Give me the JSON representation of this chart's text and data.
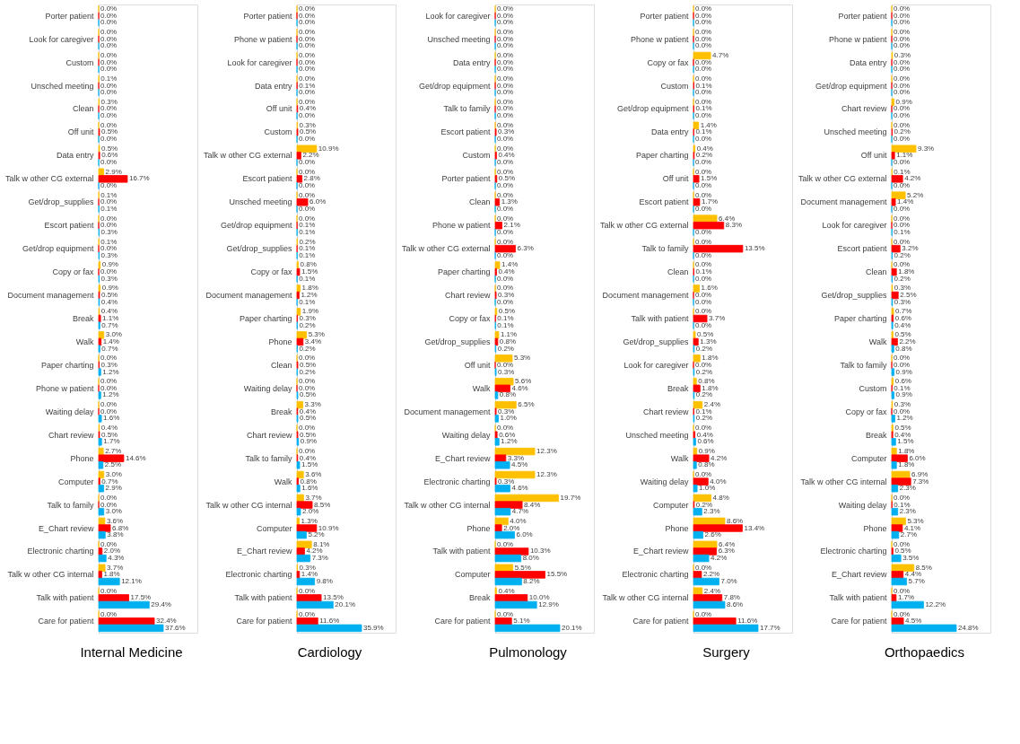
{
  "chart_data": [
    {
      "type": "bar",
      "orientation": "horizontal",
      "xlabel": "Internal Medicine",
      "tick_labels": "y",
      "categories": [
        "Porter patient",
        "Look for caregiver",
        "Custom",
        "Unsched meeting",
        "Clean",
        "Off unit",
        "Data entry",
        "Talk w other CG external",
        "Get/drop_supplies",
        "Escort patient",
        "Get/drop equipment",
        "Copy or fax",
        "Document management",
        "Break",
        "Walk",
        "Paper charting",
        "Phone w patient",
        "Waiting delay",
        "Chart review",
        "Phone",
        "Computer",
        "Talk to family",
        "E_Chart review",
        "Electronic charting",
        "Talk w other CG internal",
        "Talk with patient",
        "Care for patient"
      ],
      "series": [
        {
          "color": "#ffc000",
          "values": [
            0,
            0,
            0,
            0.1,
            0.3,
            0,
            0.5,
            2.9,
            0.1,
            0,
            0.1,
            0.9,
            0.9,
            0.4,
            3.0,
            0,
            0,
            0,
            0.4,
            2.7,
            3.0,
            0,
            3.6,
            0,
            3.7,
            0,
            0
          ],
          "value_labels": [
            "0.0%",
            "0.0%",
            "0.0%",
            "0.1%",
            "0.3%",
            "0.0%",
            "0.5%",
            "2.9%",
            "0.1%",
            "0.0%",
            "0.1%",
            "0.9%",
            "0.9%",
            "0.4%",
            "3.0%",
            "0.0%",
            "0.0%",
            "0.0%",
            "0.4%",
            "2.7%",
            "3.0%",
            "0.0%",
            "3.6%",
            "0.0%",
            "3.7%",
            "0.0%",
            "0.0%"
          ]
        },
        {
          "color": "#ff0000",
          "values": [
            0,
            0,
            0,
            0,
            0,
            0.5,
            0.6,
            16.7,
            0,
            0,
            0,
            0,
            0.5,
            1.1,
            1.4,
            0.3,
            0,
            0,
            0.5,
            14.6,
            0.7,
            0,
            6.8,
            2.0,
            1.8,
            17.5,
            32.4
          ],
          "value_labels": [
            "0.0%",
            "0.0%",
            "0.0%",
            "0.0%",
            "0.0%",
            "0.5%",
            "0.6%",
            "16.7%",
            "0.0%",
            "0.0%",
            "0.0%",
            "0.0%",
            "0.5%",
            "1.1%",
            "1.4%",
            "0.3%",
            "0.0%",
            "0.0%",
            "0.5%",
            "14.6%",
            "0.7%",
            "0.0%",
            "6.8%",
            "2.0%",
            "1.8%",
            "17.5%",
            "32.4%"
          ]
        },
        {
          "color": "#00b0f0",
          "values": [
            0,
            0,
            0,
            0,
            0,
            0,
            0,
            0,
            0.1,
            0.3,
            0.3,
            0.3,
            0.4,
            0.7,
            0.7,
            1.2,
            1.2,
            1.6,
            1.7,
            2.5,
            2.9,
            3.0,
            3.8,
            4.3,
            12.1,
            29.4,
            37.6
          ],
          "value_labels": [
            "0.0%",
            "0.0%",
            "0.0%",
            "0.0%",
            "0.0%",
            "0.0%",
            "0.0%",
            "0.0%",
            "0.1%",
            "0.3%",
            "0.3%",
            "0.3%",
            "0.4%",
            "0.7%",
            "0.7%",
            "1.2%",
            "1.2%",
            "1.6%",
            "1.7%",
            "2.5%",
            "2.9%",
            "3.0%",
            "3.8%",
            "4.3%",
            "12.1%",
            "29.4%",
            "37.6%"
          ]
        }
      ]
    },
    {
      "type": "bar",
      "orientation": "horizontal",
      "xlabel": "Cardiology",
      "tick_labels": "y",
      "categories": [
        "Porter patient",
        "Phone w patient",
        "Look for caregiver",
        "Data entry",
        "Off unit",
        "Custom",
        "Talk w other CG external",
        "Escort patient",
        "Unsched meeting",
        "Get/drop equipment",
        "Get/drop_supplies",
        "Copy or fax",
        "Document management",
        "Paper charting",
        "Phone",
        "Clean",
        "Waiting delay",
        "Break",
        "Chart review",
        "Talk to family",
        "Walk",
        "Talk w other CG internal",
        "Computer",
        "E_Chart review",
        "Electronic charting",
        "Talk with patient",
        "Care for patient"
      ],
      "series": [
        {
          "color": "#ffc000",
          "values": [
            0,
            0,
            0,
            0,
            0,
            0.3,
            10.9,
            0,
            0,
            0,
            0.2,
            0.8,
            1.8,
            1.9,
            5.3,
            0,
            0,
            3.3,
            0,
            0,
            3.6,
            3.7,
            1.3,
            8.1,
            0.3,
            0,
            0
          ],
          "value_labels": [
            "0.0%",
            "0.0%",
            "0.0%",
            "0.0%",
            "0.0%",
            "0.3%",
            "10.9%",
            "0.0%",
            "0.0%",
            "0.0%",
            "0.2%",
            "0.8%",
            "1.8%",
            "1.9%",
            "5.3%",
            "0.0%",
            "0.0%",
            "3.3%",
            "0.0%",
            "0.0%",
            "3.6%",
            "3.7%",
            "1.3%",
            "8.1%",
            "0.3%",
            "0.0%",
            "0.0%"
          ]
        },
        {
          "color": "#ff0000",
          "values": [
            0,
            0,
            0,
            0.1,
            0.4,
            0.5,
            2.2,
            2.8,
            6.0,
            0.1,
            0.1,
            1.5,
            1.2,
            0.3,
            3.4,
            0.5,
            0,
            0.4,
            0.5,
            0.4,
            0.8,
            8.5,
            10.9,
            4.2,
            1.4,
            13.5,
            11.6
          ],
          "value_labels": [
            "0.0%",
            "0.0%",
            "0.0%",
            "0.1%",
            "0.4%",
            "0.5%",
            "2.2%",
            "2.8%",
            "6.0%",
            "0.1%",
            "0.1%",
            "1.5%",
            "1.2%",
            "0.3%",
            "3.4%",
            "0.5%",
            "0.0%",
            "0.4%",
            "0.5%",
            "0.4%",
            "0.8%",
            "8.5%",
            "10.9%",
            "4.2%",
            "1.4%",
            "13.5%",
            "11.6%"
          ]
        },
        {
          "color": "#00b0f0",
          "values": [
            0,
            0,
            0,
            0,
            0,
            0,
            0,
            0,
            0,
            0.1,
            0.1,
            0.1,
            0.1,
            0.2,
            0.2,
            0.2,
            0.5,
            0.5,
            0.9,
            1.5,
            1.6,
            2.0,
            5.2,
            7.3,
            9.8,
            20.1,
            35.9
          ],
          "value_labels": [
            "0.0%",
            "0.0%",
            "0.0%",
            "0.0%",
            "0.0%",
            "0.0%",
            "0.0%",
            "0.0%",
            "0.0%",
            "0.1%",
            "0.1%",
            "0.1%",
            "0.1%",
            "0.2%",
            "0.2%",
            "0.2%",
            "0.5%",
            "0.5%",
            "0.9%",
            "1.5%",
            "1.6%",
            "2.0%",
            "5.2%",
            "7.3%",
            "9.8%",
            "20.1%",
            "35.9%"
          ]
        }
      ]
    },
    {
      "type": "bar",
      "orientation": "horizontal",
      "xlabel": "Pulmonology",
      "tick_labels": "y",
      "categories": [
        "Look for caregiver",
        "Unsched meeting",
        "Data entry",
        "Get/drop equipment",
        "Talk to family",
        "Escort patient",
        "Custom",
        "Porter patient",
        "Clean",
        "Phone w patient",
        "Talk w other CG external",
        "Paper charting",
        "Chart review",
        "Copy or fax",
        "Get/drop_supplies",
        "Off unit",
        "Walk",
        "Document management",
        "Waiting delay",
        "E_Chart review",
        "Electronic charting",
        "Talk w other CG internal",
        "Phone",
        "Talk with patient",
        "Computer",
        "Break",
        "Care for patient"
      ],
      "series": [
        {
          "color": "#ffc000",
          "values": [
            0,
            0,
            0,
            0,
            0,
            0,
            0,
            0,
            0,
            0,
            0,
            1.4,
            0,
            0.5,
            1.1,
            5.3,
            5.6,
            6.5,
            0,
            12.3,
            12.3,
            19.7,
            4.0,
            0,
            5.5,
            0.4,
            0
          ],
          "value_labels": [
            "0.0%",
            "0.0%",
            "0.0%",
            "0.0%",
            "0.0%",
            "0.0%",
            "0.0%",
            "0.0%",
            "0.0%",
            "0.0%",
            "0.0%",
            "1.4%",
            "0.0%",
            "0.5%",
            "1.1%",
            "5.3%",
            "5.6%",
            "6.5%",
            "0.0%",
            "12.3%",
            "12.3%",
            "19.7%",
            "4.0%",
            "0.0%",
            "5.5%",
            "0.4%",
            "0.0%"
          ]
        },
        {
          "color": "#ff0000",
          "values": [
            0,
            0,
            0,
            0,
            0,
            0.3,
            0.4,
            0.5,
            1.3,
            2.1,
            6.3,
            0.4,
            0.3,
            0.1,
            0.8,
            0,
            4.6,
            0.3,
            0.6,
            3.3,
            0.3,
            8.4,
            2.0,
            10.3,
            15.5,
            10.0,
            5.1
          ],
          "value_labels": [
            "0.0%",
            "0.0%",
            "0.0%",
            "0.0%",
            "0.0%",
            "0.3%",
            "0.4%",
            "0.5%",
            "1.3%",
            "2.1%",
            "6.3%",
            "0.4%",
            "0.3%",
            "0.1%",
            "0.8%",
            "0.0%",
            "4.6%",
            "0.3%",
            "0.6%",
            "3.3%",
            "0.3%",
            "8.4%",
            "2.0%",
            "10.3%",
            "15.5%",
            "10.0%",
            "5.1%"
          ]
        },
        {
          "color": "#00b0f0",
          "values": [
            0,
            0,
            0,
            0,
            0,
            0,
            0,
            0,
            0,
            0,
            0,
            0,
            0,
            0.1,
            0.2,
            0.3,
            0.8,
            1.0,
            1.2,
            4.5,
            4.6,
            4.7,
            6.0,
            8.0,
            8.2,
            12.9,
            20.1
          ],
          "value_labels": [
            "0.0%",
            "0.0%",
            "0.0%",
            "0.0%",
            "0.0%",
            "0.0%",
            "0.0%",
            "0.0%",
            "0.0%",
            "0.0%",
            "0.0%",
            "0.0%",
            "0.0%",
            "0.1%",
            "0.2%",
            "0.3%",
            "0.8%",
            "1.0%",
            "1.2%",
            "4.5%",
            "4.6%",
            "4.7%",
            "6.0%",
            "8.0%",
            "8.2%",
            "12.9%",
            "20.1%"
          ]
        }
      ]
    },
    {
      "type": "bar",
      "orientation": "horizontal",
      "xlabel": "Surgery",
      "tick_labels": "y",
      "categories": [
        "Porter patient",
        "Phone w patient",
        "Copy or fax",
        "Custom",
        "Get/drop equipment",
        "Data entry",
        "Paper charting",
        "Off unit",
        "Escort patient",
        "Talk w other CG external",
        "Talk to family",
        "Clean",
        "Document management",
        "Talk with patient",
        "Get/drop_supplies",
        "Look for caregiver",
        "Break",
        "Chart review",
        "Unsched meeting",
        "Walk",
        "Waiting delay",
        "Computer",
        "Phone",
        "E_Chart review",
        "Electronic charting",
        "Talk w other CG internal",
        "Care for patient"
      ],
      "series": [
        {
          "color": "#ffc000",
          "values": [
            0,
            0,
            4.7,
            0,
            0,
            1.4,
            0.4,
            0,
            0,
            6.4,
            0,
            0,
            1.6,
            0,
            0.5,
            1.8,
            0.8,
            2.4,
            0,
            0.9,
            0,
            4.8,
            8.6,
            6.4,
            0,
            2.4,
            0
          ],
          "value_labels": [
            "0.0%",
            "0.0%",
            "4.7%",
            "0.0%",
            "0.0%",
            "1.4%",
            "0.4%",
            "0.0%",
            "0.0%",
            "6.4%",
            "0.0%",
            "0.0%",
            "1.6%",
            "0.0%",
            "0.5%",
            "1.8%",
            "0.8%",
            "2.4%",
            "0.0%",
            "0.9%",
            "0.0%",
            "4.8%",
            "8.6%",
            "6.4%",
            "0.0%",
            "2.4%",
            "0.0%"
          ]
        },
        {
          "color": "#ff0000",
          "values": [
            0,
            0,
            0,
            0.1,
            0.1,
            0.1,
            0.2,
            1.5,
            1.7,
            8.3,
            13.5,
            0.1,
            0,
            3.7,
            1.3,
            0,
            1.8,
            0.1,
            0.4,
            4.2,
            4.0,
            0.2,
            13.4,
            6.3,
            2.2,
            7.8,
            11.6
          ],
          "value_labels": [
            "0.0%",
            "0.0%",
            "0.0%",
            "0.1%",
            "0.1%",
            "0.1%",
            "0.2%",
            "1.5%",
            "1.7%",
            "8.3%",
            "13.5%",
            "0.1%",
            "0.0%",
            "3.7%",
            "1.3%",
            "0.0%",
            "1.8%",
            "0.1%",
            "0.4%",
            "4.2%",
            "4.0%",
            "0.2%",
            "13.4%",
            "6.3%",
            "2.2%",
            "7.8%",
            "11.6%"
          ]
        },
        {
          "color": "#00b0f0",
          "values": [
            0,
            0,
            0,
            0,
            0,
            0,
            0,
            0,
            0,
            0,
            0,
            0,
            0,
            0,
            0.2,
            0.2,
            0.2,
            0.2,
            0.6,
            0.8,
            1.0,
            2.3,
            2.6,
            4.2,
            7.0,
            8.6,
            17.7
          ],
          "value_labels": [
            "0.0%",
            "0.0%",
            "0.0%",
            "0.0%",
            "0.0%",
            "0.0%",
            "0.0%",
            "0.0%",
            "0.0%",
            "0.0%",
            "0.0%",
            "0.0%",
            "0.0%",
            "0.0%",
            "0.2%",
            "0.2%",
            "0.2%",
            "0.2%",
            "0.6%",
            "0.8%",
            "1.0%",
            "2.3%",
            "2.6%",
            "4.2%",
            "7.0%",
            "8.6%",
            "17.7%"
          ]
        }
      ]
    },
    {
      "type": "bar",
      "orientation": "horizontal",
      "xlabel": "Orthopaedics",
      "tick_labels": "y",
      "categories": [
        "Porter patient",
        "Phone w patient",
        "Data entry",
        "Get/drop equipment",
        "Chart review",
        "Unsched meeting",
        "Off unit",
        "Talk w other CG external",
        "Document management",
        "Look for caregiver",
        "Escort patient",
        "Clean",
        "Get/drop_supplies",
        "Paper charting",
        "Walk",
        "Talk to family",
        "Custom",
        "Copy or fax",
        "Break",
        "Computer",
        "Talk w other CG internal",
        "Waiting delay",
        "Phone",
        "Electronic charting",
        "E_Chart review",
        "Talk with patient",
        "Care for patient"
      ],
      "series": [
        {
          "color": "#ffc000",
          "values": [
            0,
            0,
            0.3,
            0,
            0.9,
            0,
            9.3,
            0.1,
            5.2,
            0,
            0,
            0,
            0.3,
            0.7,
            0.5,
            0,
            0.6,
            0.3,
            0.5,
            1.8,
            6.9,
            0,
            5.3,
            0,
            8.5,
            0,
            0
          ],
          "value_labels": [
            "0.0%",
            "0.0%",
            "0.3%",
            "0.0%",
            "0.9%",
            "0.0%",
            "9.3%",
            "0.1%",
            "5.2%",
            "0.0%",
            "0.0%",
            "0.0%",
            "0.3%",
            "0.7%",
            "0.5%",
            "0.0%",
            "0.6%",
            "0.3%",
            "0.5%",
            "1.8%",
            "6.9%",
            "0.0%",
            "5.3%",
            "0.0%",
            "8.5%",
            "0.0%",
            "0.0%"
          ]
        },
        {
          "color": "#ff0000",
          "values": [
            0,
            0,
            0,
            0,
            0,
            0.2,
            1.1,
            4.2,
            1.4,
            0,
            3.2,
            1.8,
            2.5,
            0.6,
            2.2,
            0,
            0.1,
            0,
            0.4,
            6.0,
            7.3,
            0.1,
            4.1,
            0.5,
            4.4,
            1.7,
            4.5
          ],
          "value_labels": [
            "0.0%",
            "0.0%",
            "0.0%",
            "0.0%",
            "0.0%",
            "0.2%",
            "1.1%",
            "4.2%",
            "1.4%",
            "0.0%",
            "3.2%",
            "1.8%",
            "2.5%",
            "0.6%",
            "2.2%",
            "0.0%",
            "0.1%",
            "0.0%",
            "0.4%",
            "6.0%",
            "7.3%",
            "0.1%",
            "4.1%",
            "0.5%",
            "4.4%",
            "1.7%",
            "4.5%"
          ]
        },
        {
          "color": "#00b0f0",
          "values": [
            0,
            0,
            0,
            0,
            0,
            0,
            0,
            0,
            0,
            0.1,
            0.2,
            0.2,
            0.3,
            0.4,
            0.8,
            0.9,
            0.9,
            1.2,
            1.5,
            1.8,
            2.3,
            2.3,
            2.7,
            3.5,
            5.7,
            12.2,
            24.8
          ],
          "value_labels": [
            "0.0%",
            "0.0%",
            "0.0%",
            "0.0%",
            "0.0%",
            "0.0%",
            "0.0%",
            "0.0%",
            "0.0%",
            "0.1%",
            "0.2%",
            "0.2%",
            "0.3%",
            "0.4%",
            "0.8%",
            "0.9%",
            "0.9%",
            "1.2%",
            "1.5%",
            "1.8%",
            "2.3%",
            "2.3%",
            "2.7%",
            "3.5%",
            "5.7%",
            "12.2%",
            "24.8%"
          ]
        }
      ]
    }
  ]
}
